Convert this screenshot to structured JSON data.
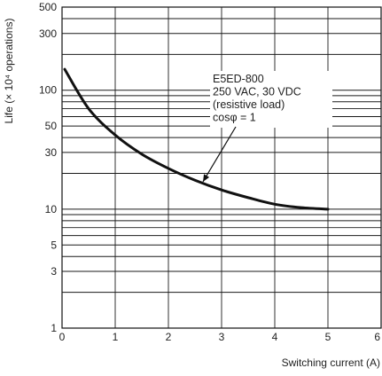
{
  "chart_data": {
    "type": "line",
    "xlabel": "Switching current (A)",
    "ylabel": "Life (× 10⁴ operations)",
    "xlim": [
      0,
      6
    ],
    "ylim": [
      1,
      500
    ],
    "y_scale": "log",
    "grid": true,
    "x_ticks": [
      0,
      1,
      2,
      3,
      4,
      5,
      6
    ],
    "x_tick_labels": [
      "0",
      "1",
      "2",
      "3",
      "4",
      "5",
      "6"
    ],
    "y_ticks": [
      1,
      3,
      5,
      10,
      30,
      50,
      100,
      300,
      500
    ],
    "y_tick_labels": [
      "1",
      "3",
      "5",
      "10",
      "30",
      "50",
      "100",
      "300",
      "500"
    ],
    "series": [
      {
        "x": [
          0.05,
          0.5,
          1.0,
          1.5,
          2.0,
          2.5,
          3.0,
          3.5,
          4.0,
          4.5,
          5.0
        ],
        "y": [
          150,
          70,
          42,
          29,
          22,
          17.5,
          14.5,
          12.5,
          11,
          10.3,
          10
        ],
        "color": "#111111"
      }
    ],
    "annotation": {
      "lines": [
        "E5ED-800",
        "250 VAC, 30 VDC",
        "(resistive load)",
        "cosφ = 1"
      ],
      "arrow_target": {
        "x": 2.65,
        "y": 17
      }
    }
  }
}
